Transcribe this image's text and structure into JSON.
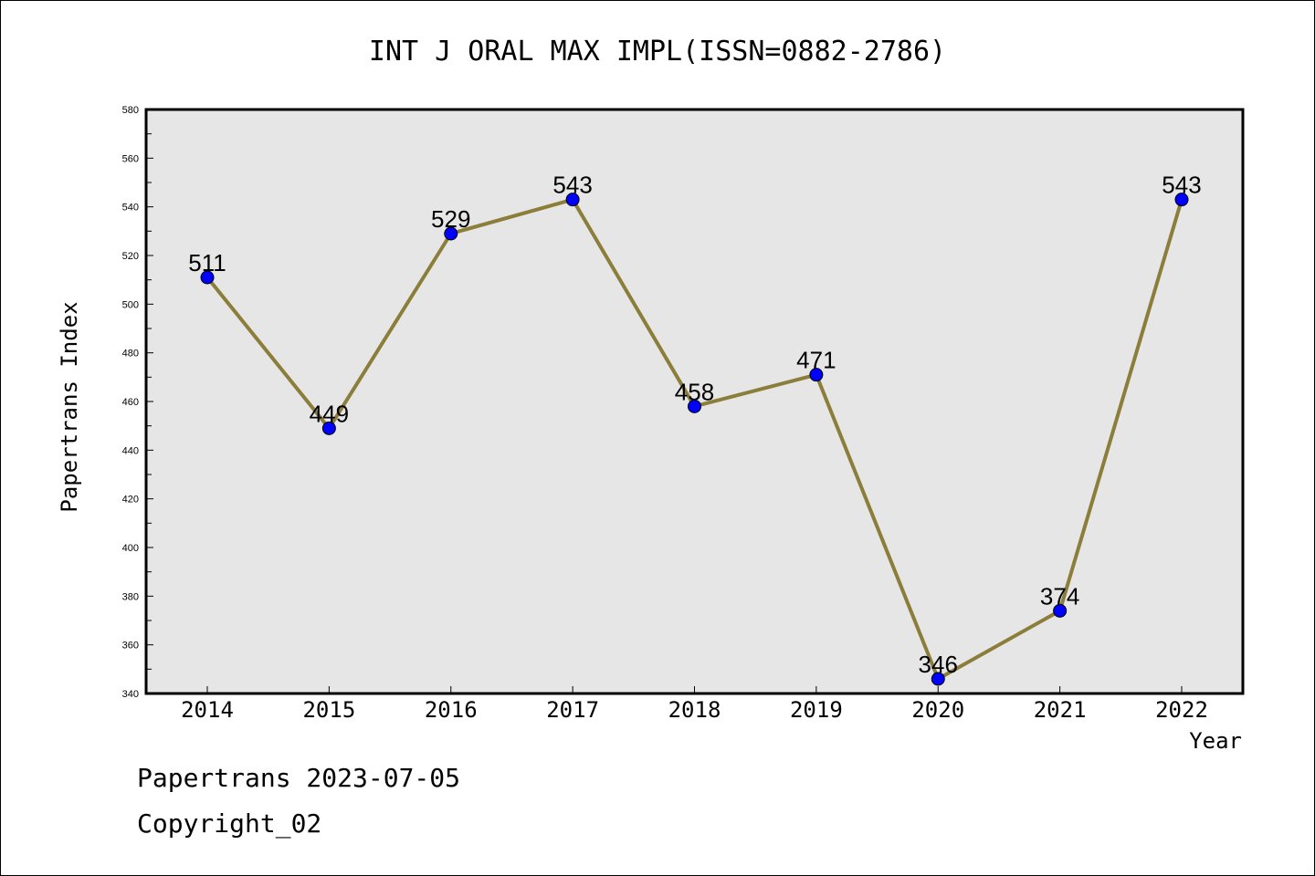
{
  "chart_data": {
    "type": "line",
    "title": "INT J ORAL MAX IMPL(ISSN=0882-2786)",
    "xlabel": "Year",
    "ylabel": "Papertrans Index",
    "categories": [
      "2014",
      "2015",
      "2016",
      "2017",
      "2018",
      "2019",
      "2020",
      "2021",
      "2022"
    ],
    "series": [
      {
        "values": [
          511,
          449,
          529,
          543,
          458,
          471,
          346,
          374,
          543
        ]
      }
    ],
    "data_labels": [
      "511",
      "449",
      "529",
      "543",
      "458",
      "471",
      "346",
      "374",
      "543"
    ],
    "ylim": [
      340,
      580
    ],
    "yticks": [
      340,
      360,
      380,
      400,
      420,
      440,
      460,
      480,
      500,
      520,
      540,
      560,
      580
    ],
    "grid": false,
    "colors": {
      "line": "#8b7d3a",
      "marker": "#0000ff",
      "plot_background": "#e6e6e6"
    }
  },
  "footer": {
    "line1": "Papertrans 2023-07-05",
    "line2": "Copyright_02"
  }
}
